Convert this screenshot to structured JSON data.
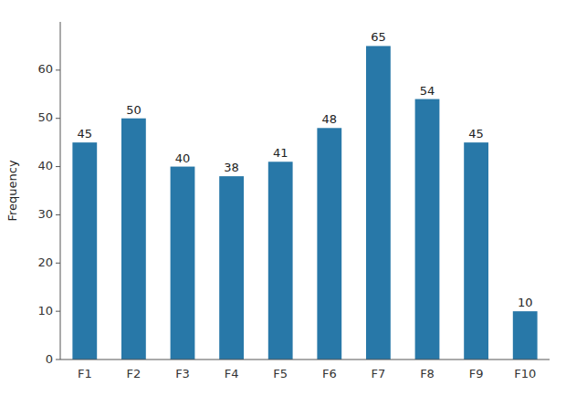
{
  "chart_data": {
    "type": "bar",
    "categories": [
      "F1",
      "F2",
      "F3",
      "F4",
      "F5",
      "F6",
      "F7",
      "F8",
      "F9",
      "F10"
    ],
    "values": [
      45,
      50,
      40,
      38,
      41,
      48,
      65,
      54,
      45,
      10
    ],
    "color": "#2878a8",
    "ylabel": "Frequency",
    "ylim": [
      0,
      70
    ],
    "yticks": [
      0,
      10,
      20,
      30,
      40,
      50,
      60
    ],
    "grid": false,
    "data_labels": true
  }
}
